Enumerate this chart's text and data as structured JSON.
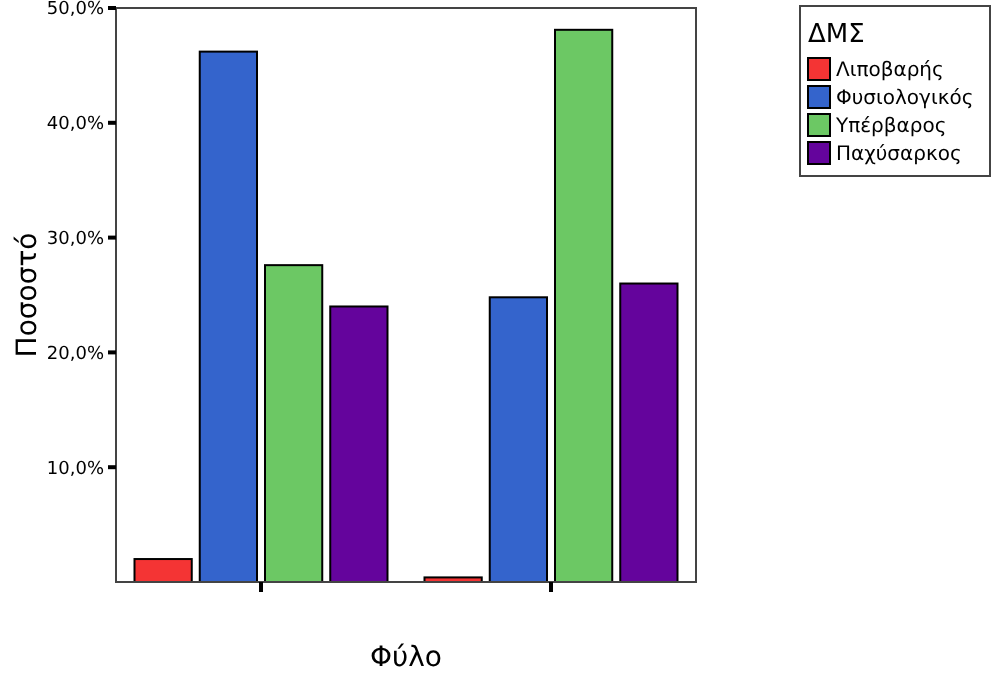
{
  "chart_data": {
    "type": "bar",
    "xlabel": "Φύλο",
    "ylabel": "Ποσοστό",
    "legend_title": "ΔΜΣ",
    "legend": "top right",
    "grid": false,
    "categories": [
      null,
      null
    ],
    "ylim": [
      0,
      50
    ],
    "yticks": [
      {
        "value": 10,
        "label": "10,0%"
      },
      {
        "value": 20,
        "label": "20,0%"
      },
      {
        "value": 30,
        "label": "30,0%"
      },
      {
        "value": 40,
        "label": "40,0%"
      },
      {
        "value": 50,
        "label": "50,0%"
      }
    ],
    "series": [
      {
        "name": "Λιποβαρής",
        "color": "#f43434",
        "values": [
          2.0,
          0.4
        ]
      },
      {
        "name": "Φυσιολογικός",
        "color": "#3464cc",
        "values": [
          46.2,
          24.8
        ]
      },
      {
        "name": "Υπέρβαρος",
        "color": "#6cc864",
        "values": [
          27.6,
          48.1
        ]
      },
      {
        "name": "Παχύσαρκος",
        "color": "#64049c",
        "values": [
          24.0,
          26.0
        ]
      }
    ]
  }
}
